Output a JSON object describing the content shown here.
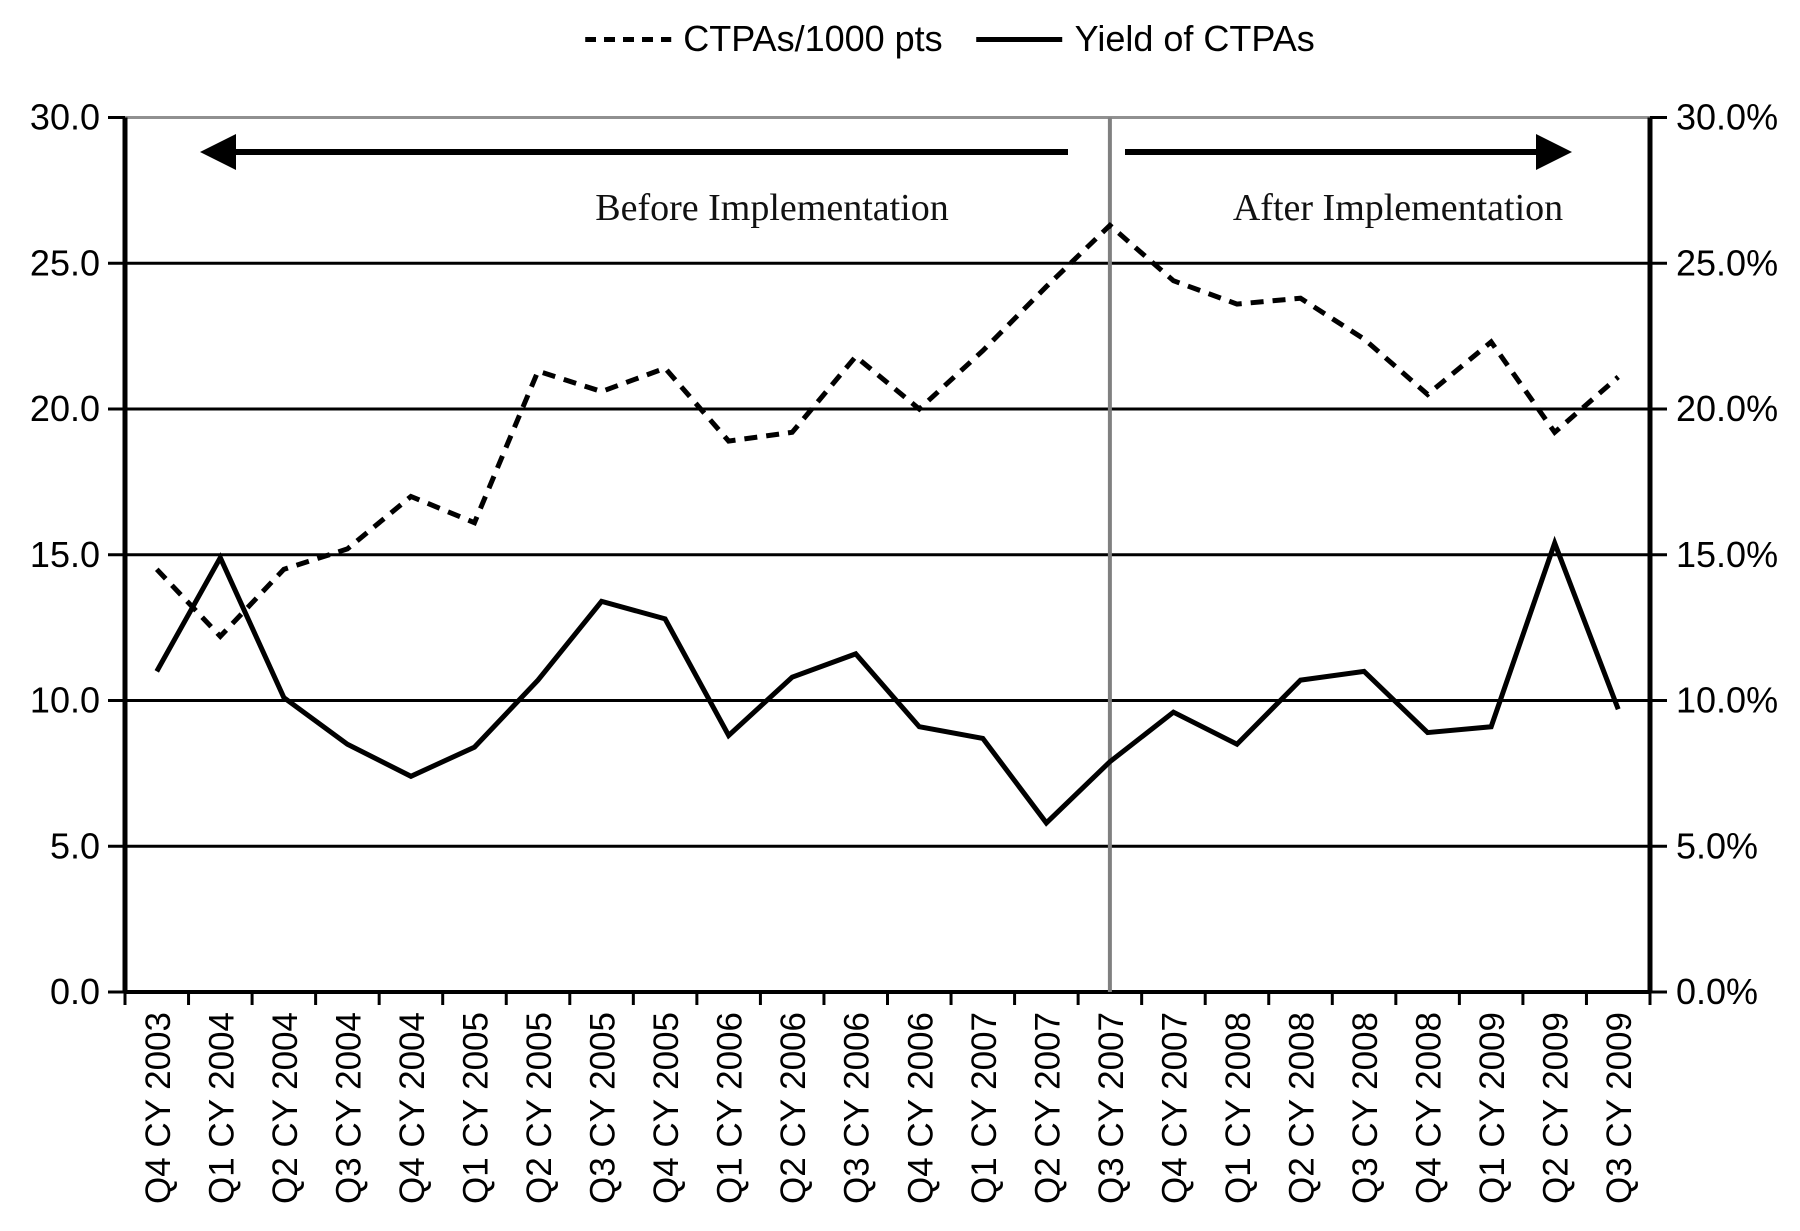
{
  "legend": {
    "items": [
      {
        "label": "CTPAs/1000 pts",
        "style": "dashed"
      },
      {
        "label": "Yield of CTPAs",
        "style": "solid"
      }
    ]
  },
  "annotations": {
    "before": "Before Implementation",
    "after": "After Implementation"
  },
  "chart_data": {
    "type": "line",
    "title": "",
    "xlabel": "",
    "ylabel_left": "",
    "ylabel_right": "",
    "grid": "horizontal",
    "legend_position": "top",
    "categories": [
      "Q4 CY 2003",
      "Q1 CY 2004",
      "Q2 CY 2004",
      "Q3 CY 2004",
      "Q4 CY 2004",
      "Q1 CY 2005",
      "Q2 CY 2005",
      "Q3 CY 2005",
      "Q4 CY 2005",
      "Q1 CY 2006",
      "Q2 CY 2006",
      "Q3 CY 2006",
      "Q4 CY 2006",
      "Q1 CY 2007",
      "Q2 CY 2007",
      "Q3 CY 2007",
      "Q4 CY 2007",
      "Q1 CY 2008",
      "Q2 CY 2008",
      "Q3 CY 2008",
      "Q4 CY 2008",
      "Q1 CY 2009",
      "Q2 CY 2009",
      "Q3 CY 2009"
    ],
    "series": [
      {
        "name": "CTPAs/1000 pts",
        "line_style": "dashed",
        "axis": "left",
        "values": [
          14.5,
          12.2,
          14.5,
          15.2,
          17.0,
          16.1,
          21.3,
          20.6,
          21.4,
          18.9,
          19.2,
          21.8,
          20.0,
          22.0,
          24.2,
          26.3,
          24.4,
          23.6,
          23.8,
          22.4,
          20.5,
          22.3,
          19.2,
          21.1
        ]
      },
      {
        "name": "Yield of CTPAs",
        "line_style": "solid",
        "axis": "right",
        "values": [
          11.0,
          14.9,
          10.1,
          8.5,
          7.4,
          8.4,
          10.7,
          13.4,
          12.8,
          8.8,
          10.8,
          11.6,
          9.1,
          8.7,
          5.8,
          7.9,
          9.6,
          8.5,
          10.7,
          11.0,
          8.9,
          9.1,
          15.4,
          9.7
        ]
      }
    ],
    "left_axis": {
      "range": [
        0,
        30
      ],
      "tick_step": 5,
      "tick_labels": [
        "0.0",
        "5.0",
        "10.0",
        "15.0",
        "20.0",
        "25.0",
        "30.0"
      ]
    },
    "right_axis": {
      "range": [
        0,
        30
      ],
      "tick_step": 5,
      "tick_labels": [
        "0.0%",
        "5.0%",
        "10.0%",
        "15.0%",
        "20.0%",
        "25.0%",
        "30.0%"
      ]
    },
    "divider": {
      "at_category": "Q3 CY 2007",
      "at_category_index": 15,
      "color": "#808080"
    },
    "colors": {
      "lines": "#000000",
      "top_border": "#909090",
      "divider": "#808080",
      "background": "#ffffff"
    }
  }
}
